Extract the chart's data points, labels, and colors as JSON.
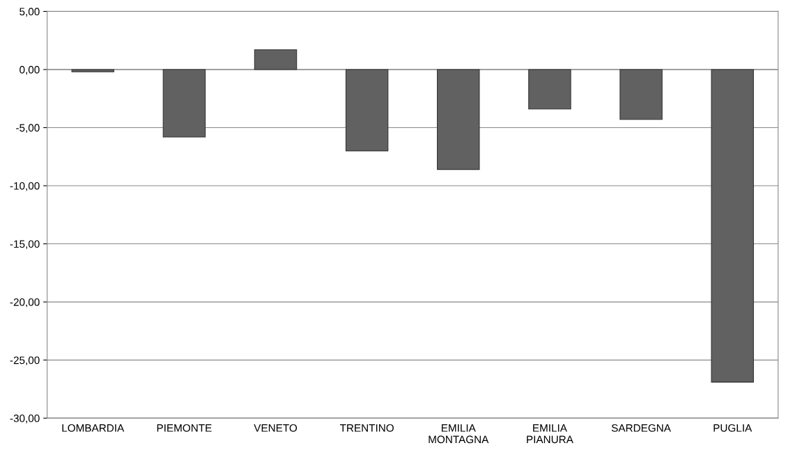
{
  "chart_data": {
    "type": "bar",
    "categories": [
      "LOMBARDIA",
      "PIEMONTE",
      "VENETO",
      "TRENTINO",
      "EMILIA MONTAGNA",
      "EMILIA PIANURA",
      "SARDEGNA",
      "PUGLIA"
    ],
    "values": [
      -0.2,
      -5.8,
      1.7,
      -7.0,
      -8.6,
      -3.4,
      -4.3,
      -26.9
    ],
    "color": "#616161",
    "ylim": [
      -30,
      5
    ],
    "yticks": [
      {
        "value": -30,
        "label": "-30,00"
      },
      {
        "value": -25,
        "label": "-25,00"
      },
      {
        "value": -20,
        "label": "-20,00"
      },
      {
        "value": -15,
        "label": "-15,00"
      },
      {
        "value": -10,
        "label": "-10,00"
      },
      {
        "value": -5,
        "label": "-5,00"
      },
      {
        "value": 0,
        "label": "0,00"
      },
      {
        "value": 5,
        "label": "5,00"
      }
    ],
    "grid": "y"
  }
}
